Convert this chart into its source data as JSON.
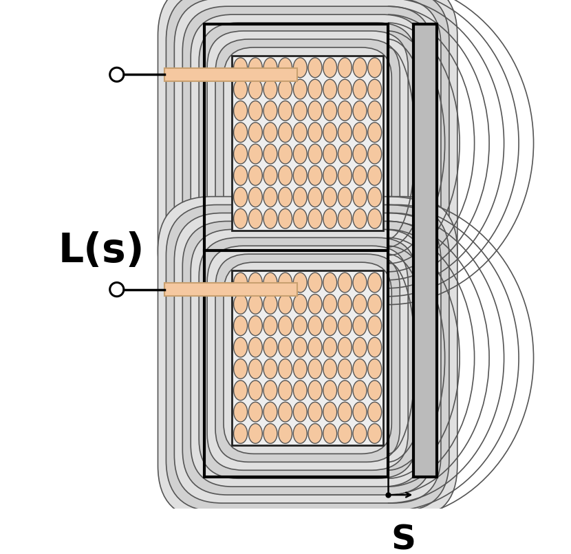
{
  "fig_width": 8.3,
  "fig_height": 8.05,
  "coil_fill": "#f5c8a0",
  "coil_dot_fill": "#f5c8a0",
  "coil_dot_edge": "#555555",
  "coil_bg": "#f0f0f0",
  "loop_fill_light": "#d8d8d8",
  "loop_fill_dark": "#b8b8b8",
  "loop_edge": "#555555",
  "core_fill": "#cccccc",
  "plate_fill": "#aaaaaa",
  "black": "#000000",
  "label_L": "L(s)",
  "label_S": "S",
  "label_fontsize": 42,
  "S_fontsize": 36
}
